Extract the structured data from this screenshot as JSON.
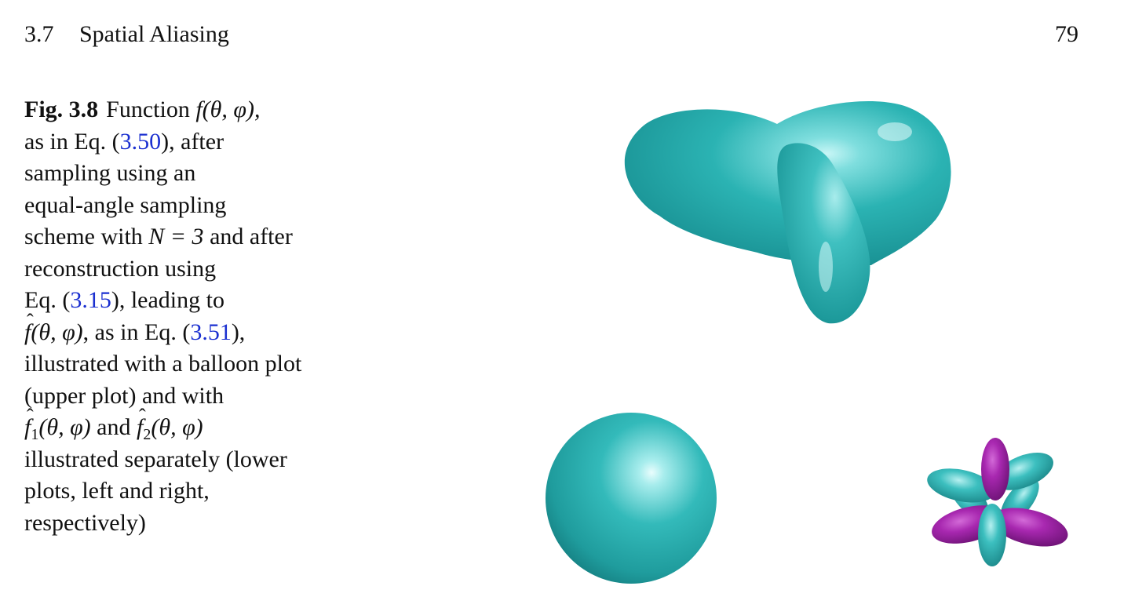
{
  "header": {
    "section_number": "3.7",
    "section_title": "Spatial Aliasing",
    "page_number": "79"
  },
  "caption": {
    "label": "Fig. 3.8",
    "l1_text": "Function ",
    "l1_math": "f(θ, φ),",
    "l2_pre": "as in Eq. (",
    "l2_ref": "3.50",
    "l2_post": "), after",
    "l3": "sampling using an",
    "l4": "equal-angle sampling",
    "l5_pre": "scheme with ",
    "l5_math": "N = 3",
    "l5_post": " and after",
    "l6": "reconstruction using",
    "l7_pre": "Eq. (",
    "l7_ref": "3.15",
    "l7_post": "), leading to",
    "l8_math_f": "f",
    "l8_math_args": "(θ, φ)",
    "l8_mid": ", as in Eq. (",
    "l8_ref": "3.51",
    "l8_post": "),",
    "l9": "illustrated with a balloon plot",
    "l10": "(upper plot) and with",
    "l11_f": "f",
    "l11_sub1": "1",
    "l11_args1": "(θ, φ)",
    "l11_and": " and ",
    "l11_sub2": "2",
    "l11_args2": "(θ, φ)",
    "l12": "illustrated separately (lower",
    "l13": "plots, left and right,",
    "l14": "respectively)"
  },
  "colors": {
    "teal": "#2bb3b3",
    "teal_dark": "#137a7c",
    "teal_light": "#9fe9e9",
    "magenta": "#9b1fa3",
    "magenta_dark": "#5e0d66",
    "magenta_light": "#d36ad8",
    "ref_blue": "#1a2fd0"
  }
}
